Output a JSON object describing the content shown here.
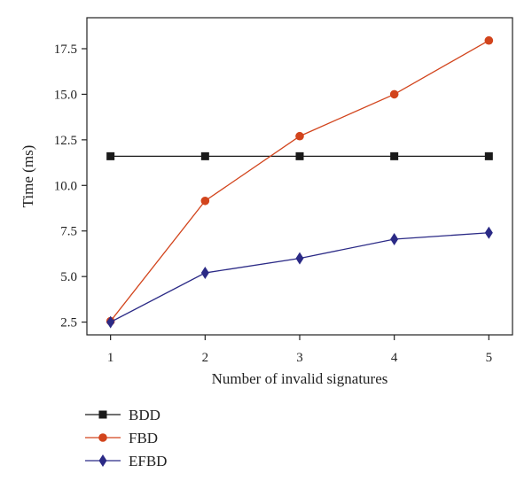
{
  "chart_data": {
    "type": "line",
    "xlabel": "Number of invalid signatures",
    "ylabel": "Time (ms)",
    "x": [
      1,
      2,
      3,
      4,
      5
    ],
    "xlim": [
      0.75,
      5.25
    ],
    "ylim": [
      1.8,
      19.2
    ],
    "xticks": [
      1,
      2,
      3,
      4,
      5
    ],
    "yticks": [
      2.5,
      5.0,
      7.5,
      10.0,
      12.5,
      15.0,
      17.5
    ],
    "ytick_labels": [
      "2.5",
      "5.0",
      "7.5",
      "10.0",
      "12.5",
      "15.0",
      "17.5"
    ],
    "grid": false,
    "legend_position": "bottom-left, below plot",
    "series": [
      {
        "name": "BDD",
        "values": [
          11.6,
          11.6,
          11.6,
          11.6,
          11.6
        ],
        "color": "#1a1a1a",
        "marker": "square"
      },
      {
        "name": "FBD",
        "values": [
          2.55,
          9.15,
          12.7,
          15.0,
          17.95
        ],
        "color": "#d2441c",
        "marker": "circle"
      },
      {
        "name": "EFBD",
        "values": [
          2.5,
          5.2,
          6.0,
          7.05,
          7.4
        ],
        "color": "#2b2a86",
        "marker": "diamond"
      }
    ]
  }
}
